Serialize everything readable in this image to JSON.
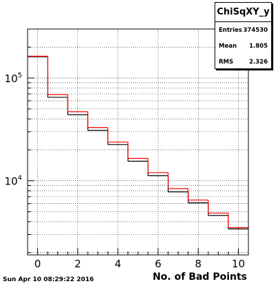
{
  "chart_data": {
    "type": "histogram",
    "title": "ChiSqXY_y",
    "xlabel": "No. of Bad Points",
    "ylabel": "",
    "x_scale": "linear",
    "y_scale": "log",
    "xlim": [
      -0.5,
      10.5
    ],
    "ylim": [
      1900,
      300000
    ],
    "grid": true,
    "x_ticks": [
      0,
      2,
      4,
      6,
      8,
      10
    ],
    "y_tick_labels": [
      {
        "value": 100000,
        "base": "10",
        "exp": "5"
      },
      {
        "value": 10000,
        "base": "10",
        "exp": "4"
      }
    ],
    "bin_edges": [
      -0.5,
      0.5,
      1.5,
      2.5,
      3.5,
      4.5,
      5.5,
      6.5,
      7.5,
      8.5,
      9.5,
      10.5
    ],
    "series": [
      {
        "color": "#000000",
        "values": [
          161000,
          65000,
          44000,
          31000,
          22500,
          15500,
          11200,
          7800,
          6100,
          4600,
          3400
        ]
      },
      {
        "color": "#ff0000",
        "values": [
          163000,
          69000,
          47000,
          33000,
          23800,
          16500,
          12000,
          8400,
          6500,
          4850,
          3500
        ]
      }
    ],
    "stats": [
      {
        "label": "Entries",
        "value": "374530"
      },
      {
        "label": "Mean",
        "value": "1.805"
      },
      {
        "label": "RMS",
        "value": "2.326"
      }
    ]
  },
  "datestamp": "Sun Apr 10 08:29:22 2016"
}
